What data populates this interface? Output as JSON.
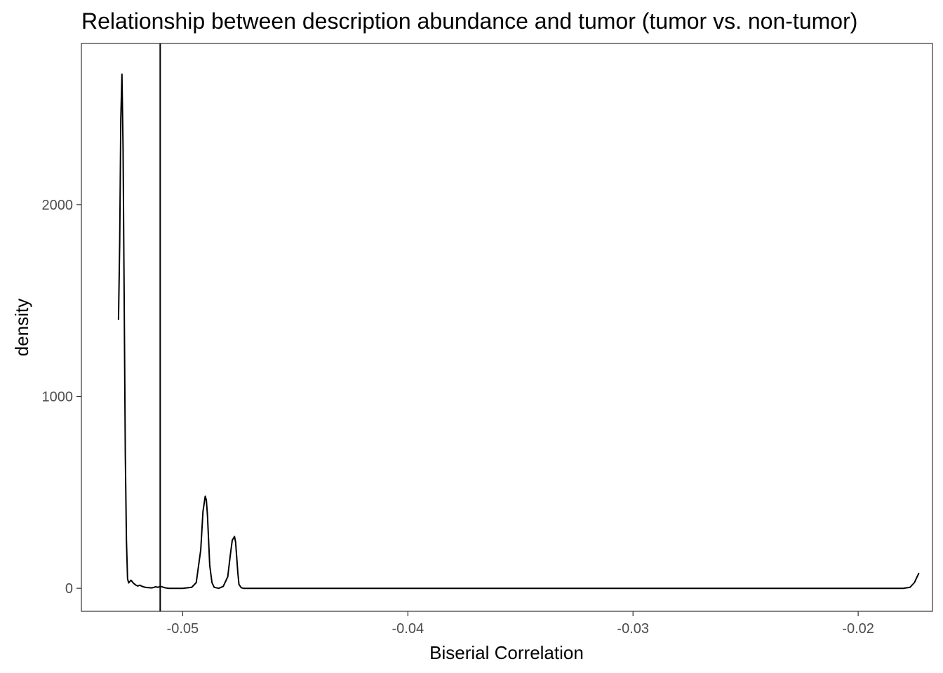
{
  "chart_data": {
    "type": "line",
    "title": "Relationship between description abundance and tumor (tumor vs. non-tumor)",
    "xlabel": "Biserial Correlation",
    "ylabel": "density",
    "xlim": [
      -0.0545,
      -0.0167
    ],
    "ylim": [
      -120,
      2840
    ],
    "x_ticks": [
      -0.05,
      -0.04,
      -0.03,
      -0.02
    ],
    "x_tick_labels": [
      "-0.05",
      "-0.04",
      "-0.03",
      "-0.02"
    ],
    "y_ticks": [
      0,
      1000,
      2000
    ],
    "y_tick_labels": [
      "0",
      "1000",
      "2000"
    ],
    "vline_x": -0.051,
    "grid": false,
    "series": [
      {
        "x": [
          -0.05285,
          -0.0528,
          -0.05275,
          -0.0527,
          -0.05265,
          -0.0526,
          -0.05255,
          -0.0525,
          -0.05245,
          -0.0524,
          -0.05235,
          -0.0523,
          -0.05225,
          -0.0522,
          -0.0521,
          -0.052,
          -0.0519,
          -0.0518,
          -0.0517,
          -0.0516,
          -0.0515,
          -0.0514,
          -0.0513,
          -0.0512,
          -0.0511,
          -0.051,
          -0.0509,
          -0.0508,
          -0.0507,
          -0.0506,
          -0.0504,
          -0.05,
          -0.0496,
          -0.0494,
          -0.0492,
          -0.0491,
          -0.049,
          -0.04895,
          -0.0489,
          -0.04885,
          -0.0488,
          -0.0487,
          -0.0486,
          -0.0484,
          -0.0482,
          -0.048,
          -0.0479,
          -0.0478,
          -0.0477,
          -0.04765,
          -0.0476,
          -0.04755,
          -0.0475,
          -0.0474,
          -0.0473,
          -0.047,
          -0.046,
          -0.045,
          -0.04,
          -0.035,
          -0.03,
          -0.025,
          -0.02,
          -0.018,
          -0.0177,
          -0.0175,
          -0.0174,
          -0.0173
        ],
        "y": [
          1400,
          1800,
          2450,
          2680,
          2300,
          1500,
          700,
          250,
          50,
          28,
          35,
          42,
          36,
          28,
          18,
          12,
          16,
          10,
          6,
          4,
          3,
          2,
          4,
          8,
          5,
          10,
          7,
          3,
          1,
          0,
          0,
          0,
          5,
          30,
          200,
          400,
          480,
          460,
          380,
          250,
          120,
          30,
          5,
          0,
          10,
          60,
          160,
          250,
          270,
          240,
          160,
          80,
          20,
          3,
          0,
          0,
          0,
          0,
          0,
          0,
          0,
          0,
          0,
          0,
          5,
          30,
          55,
          80
        ]
      }
    ]
  }
}
